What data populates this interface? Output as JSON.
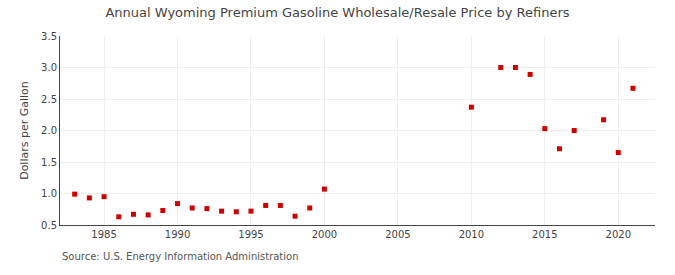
{
  "chart_data": {
    "type": "scatter",
    "title": "Annual Wyoming Premium Gasoline Wholesale/Resale Price by Refiners",
    "ylabel": "Dollars per Gallon",
    "annotations": [
      "Source: U.S. Energy Information Administration"
    ],
    "x": [
      1983,
      1984,
      1985,
      1986,
      1987,
      1988,
      1989,
      1990,
      1991,
      1992,
      1993,
      1994,
      1995,
      1996,
      1997,
      1998,
      1999,
      2000,
      2010,
      2012,
      2013,
      2014,
      2015,
      2016,
      2017,
      2019,
      2020,
      2021
    ],
    "values": [
      0.99,
      0.93,
      0.95,
      0.63,
      0.67,
      0.66,
      0.73,
      0.84,
      0.77,
      0.76,
      0.72,
      0.71,
      0.72,
      0.81,
      0.81,
      0.64,
      0.77,
      1.07,
      2.37,
      3.0,
      3.0,
      2.89,
      2.03,
      1.71,
      2.0,
      2.17,
      1.65,
      2.67
    ],
    "color": "#cc0000",
    "marker": "square",
    "xlim": [
      1982,
      2022.5
    ],
    "ylim": [
      0.5,
      3.5
    ],
    "xticks": [
      1985,
      1990,
      1995,
      2000,
      2005,
      2010,
      2015,
      2020
    ],
    "yticks": [
      0.5,
      {
        "value": 1.0,
        "label": "1.0"
      },
      1.5,
      {
        "value": 2.0,
        "label": "2.0"
      },
      2.5,
      {
        "value": 3.0,
        "label": "3.0"
      },
      3.5
    ],
    "grid": true
  }
}
